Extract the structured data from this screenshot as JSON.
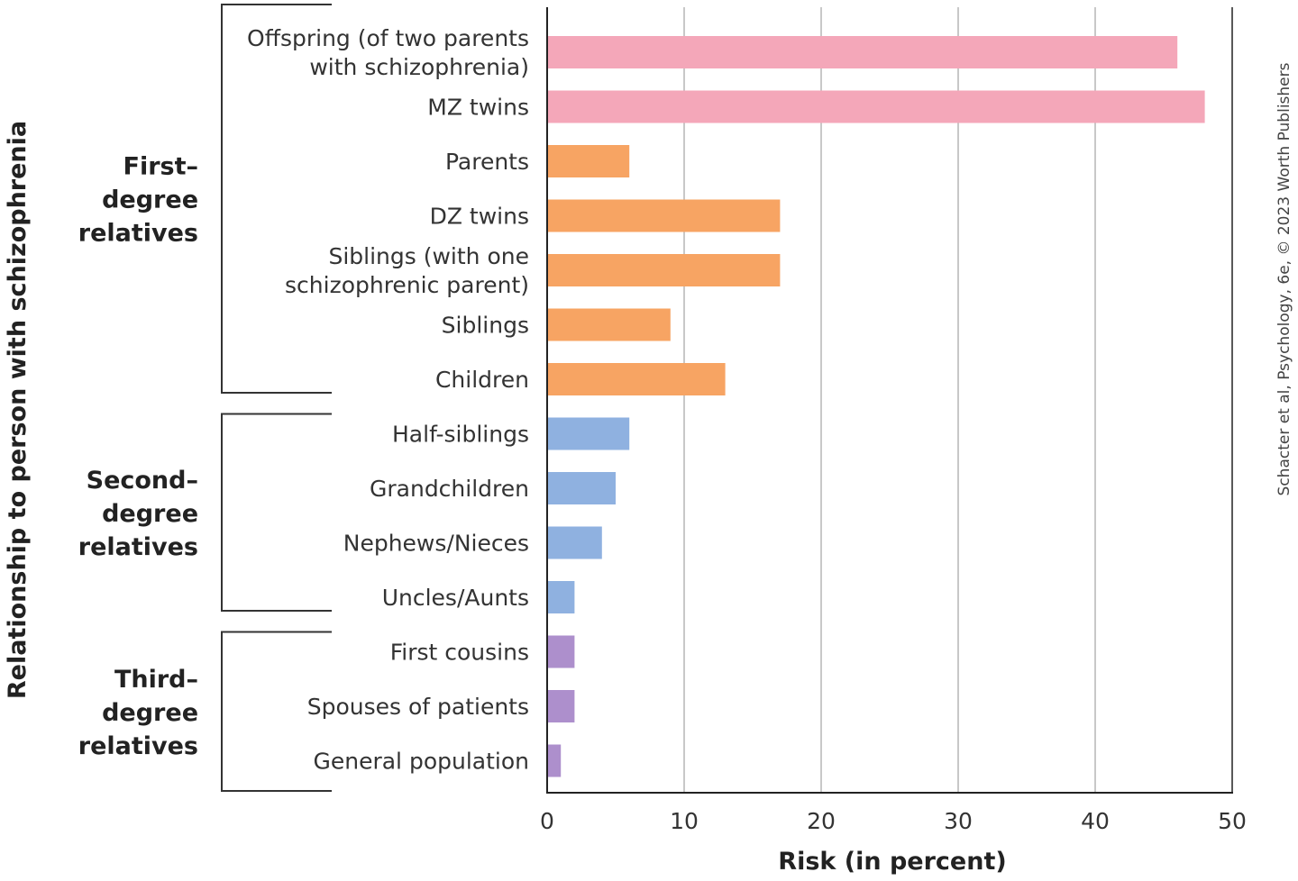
{
  "chart_data": {
    "type": "bar",
    "orientation": "horizontal",
    "title": "",
    "xlabel": "Risk (in percent)",
    "ylabel": "Relationship to person with schizophrenia",
    "xlim": [
      0,
      50
    ],
    "xticks": [
      "0",
      "10",
      "20",
      "30",
      "40",
      "50"
    ],
    "grid": "vertical",
    "credit": "Schacter et al, Psychology, 6e, © 2023 Worth Publishers",
    "colors": {
      "pink": "#f4a7b9",
      "orange": "#f7a463",
      "blue": "#8fb1e0",
      "purple": "#ad8fcc"
    },
    "categories": [
      {
        "label": [
          "Offspring (of two parents",
          "with schizophrenia)"
        ],
        "value": 46,
        "color": "pink"
      },
      {
        "label": [
          "MZ twins"
        ],
        "value": 48,
        "color": "pink"
      },
      {
        "label": [
          "Parents"
        ],
        "value": 6,
        "color": "orange"
      },
      {
        "label": [
          "DZ twins"
        ],
        "value": 17,
        "color": "orange"
      },
      {
        "label": [
          "Siblings (with one",
          "schizophrenic parent)"
        ],
        "value": 17,
        "color": "orange"
      },
      {
        "label": [
          "Siblings"
        ],
        "value": 9,
        "color": "orange"
      },
      {
        "label": [
          "Children"
        ],
        "value": 13,
        "color": "orange"
      },
      {
        "label": [
          "Half-siblings"
        ],
        "value": 6,
        "color": "blue"
      },
      {
        "label": [
          "Grandchildren"
        ],
        "value": 5,
        "color": "blue"
      },
      {
        "label": [
          "Nephews/Nieces"
        ],
        "value": 4,
        "color": "blue"
      },
      {
        "label": [
          "Uncles/Aunts"
        ],
        "value": 2,
        "color": "blue"
      },
      {
        "label": [
          "First cousins"
        ],
        "value": 2,
        "color": "purple"
      },
      {
        "label": [
          "Spouses  of patients"
        ],
        "value": 2,
        "color": "purple"
      },
      {
        "label": [
          "General population"
        ],
        "value": 1,
        "color": "purple"
      }
    ],
    "groups": [
      {
        "label": [
          "First–",
          "degree",
          "relatives"
        ],
        "from": 0,
        "to": 6
      },
      {
        "label": [
          "Second–",
          "degree",
          "relatives"
        ],
        "from": 7,
        "to": 10
      },
      {
        "label": [
          "Third–",
          "degree",
          "relatives"
        ],
        "from": 11,
        "to": 13
      }
    ]
  }
}
